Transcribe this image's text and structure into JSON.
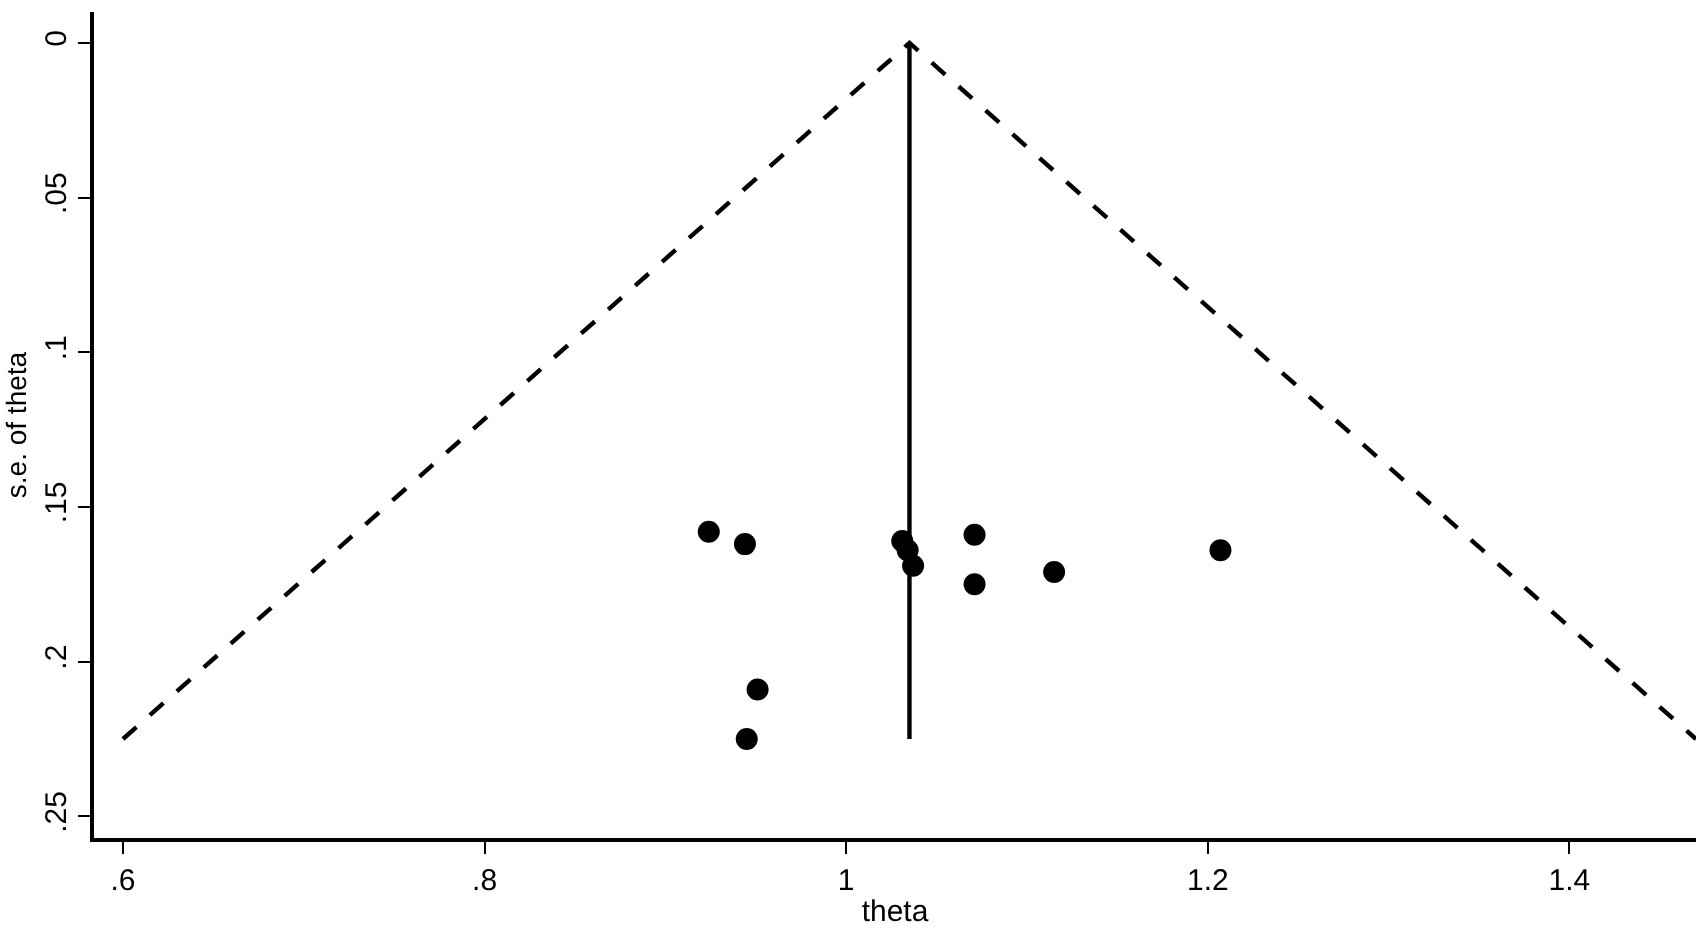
{
  "chart_data": {
    "type": "scatter",
    "xlabel": "theta",
    "ylabel": "s.e. of theta",
    "xlim": [
      0.584,
      1.47
    ],
    "ylim": [
      0.257,
      -0.01
    ],
    "xticks": [
      {
        "value": 0.6,
        "label": ".6"
      },
      {
        "value": 0.8,
        "label": ".8"
      },
      1,
      {
        "value": 1.2,
        "label": "1.2"
      },
      {
        "value": 1.4,
        "label": "1.4"
      }
    ],
    "yticks": [
      0,
      {
        "value": 0.05,
        "label": ".05"
      },
      {
        "value": 0.1,
        "label": ".1"
      },
      {
        "value": 0.15,
        "label": ".15"
      },
      {
        "value": 0.2,
        "label": ".2"
      },
      {
        "value": 0.25,
        "label": ".25"
      }
    ],
    "series": [
      {
        "color": "#000000",
        "marker": "circle",
        "x": [
          0.924,
          0.944,
          1.031,
          1.034,
          1.037,
          1.071,
          1.071,
          1.115,
          1.207,
          0.951,
          0.945
        ],
        "values": [
          0.158,
          0.162,
          0.161,
          0.164,
          0.169,
          0.159,
          0.175,
          0.171,
          0.164,
          0.209,
          0.225
        ]
      },
      {
        "type": "line",
        "color": "#000000",
        "line_style": "dashed",
        "x": [
          0.6,
          1.035,
          1.47
        ],
        "values": [
          0.225,
          0,
          0.225
        ]
      },
      {
        "type": "line",
        "color": "#000000",
        "line_style": "solid",
        "x": [
          1.035,
          1.035
        ],
        "values": [
          0,
          0.225
        ]
      }
    ]
  }
}
